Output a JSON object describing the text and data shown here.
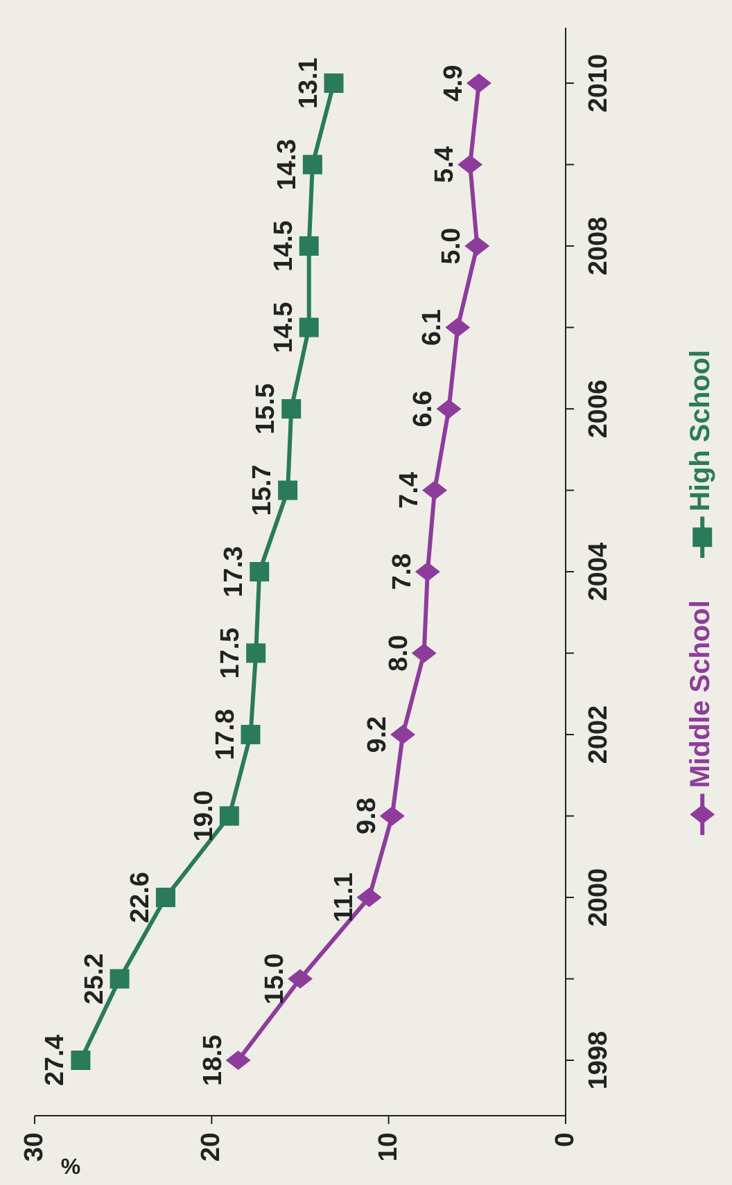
{
  "chart_data": {
    "type": "line",
    "orientation": "horizontal",
    "xlabel": "%",
    "categories": [
      "2010",
      null,
      "2008",
      null,
      "2006",
      null,
      "2004",
      null,
      "2002",
      null,
      "2000",
      null,
      "1998"
    ],
    "xlim": [
      30,
      0
    ],
    "xticks": [
      30,
      20,
      10,
      0
    ],
    "grid": false,
    "legend": "right",
    "series": [
      {
        "name": "Middle School",
        "color": "#8e3c9c",
        "marker": "diamond",
        "values": [
          4.9,
          5.4,
          5.0,
          6.1,
          6.6,
          7.4,
          7.8,
          8.0,
          9.2,
          9.8,
          11.1,
          15.0,
          18.5
        ],
        "value_labels": [
          "4.9",
          "5.4",
          "5.0",
          "6.1",
          "6.6",
          "7.4",
          "7.8",
          "8.0",
          "9.2",
          "9.8",
          "11.1",
          "15.0",
          "18.5"
        ]
      },
      {
        "name": "High School",
        "color": "#2a7a5c",
        "marker": "square",
        "values": [
          13.1,
          14.3,
          14.5,
          14.5,
          15.5,
          15.7,
          17.3,
          17.5,
          17.8,
          19.0,
          22.6,
          25.2,
          27.4
        ],
        "value_labels": [
          "13.1",
          "14.3",
          "14.5",
          "14.5",
          "15.5",
          "15.7",
          "17.3",
          "17.5",
          "17.8",
          "19.0",
          "22.6",
          "25.2",
          "27.4"
        ]
      }
    ]
  }
}
